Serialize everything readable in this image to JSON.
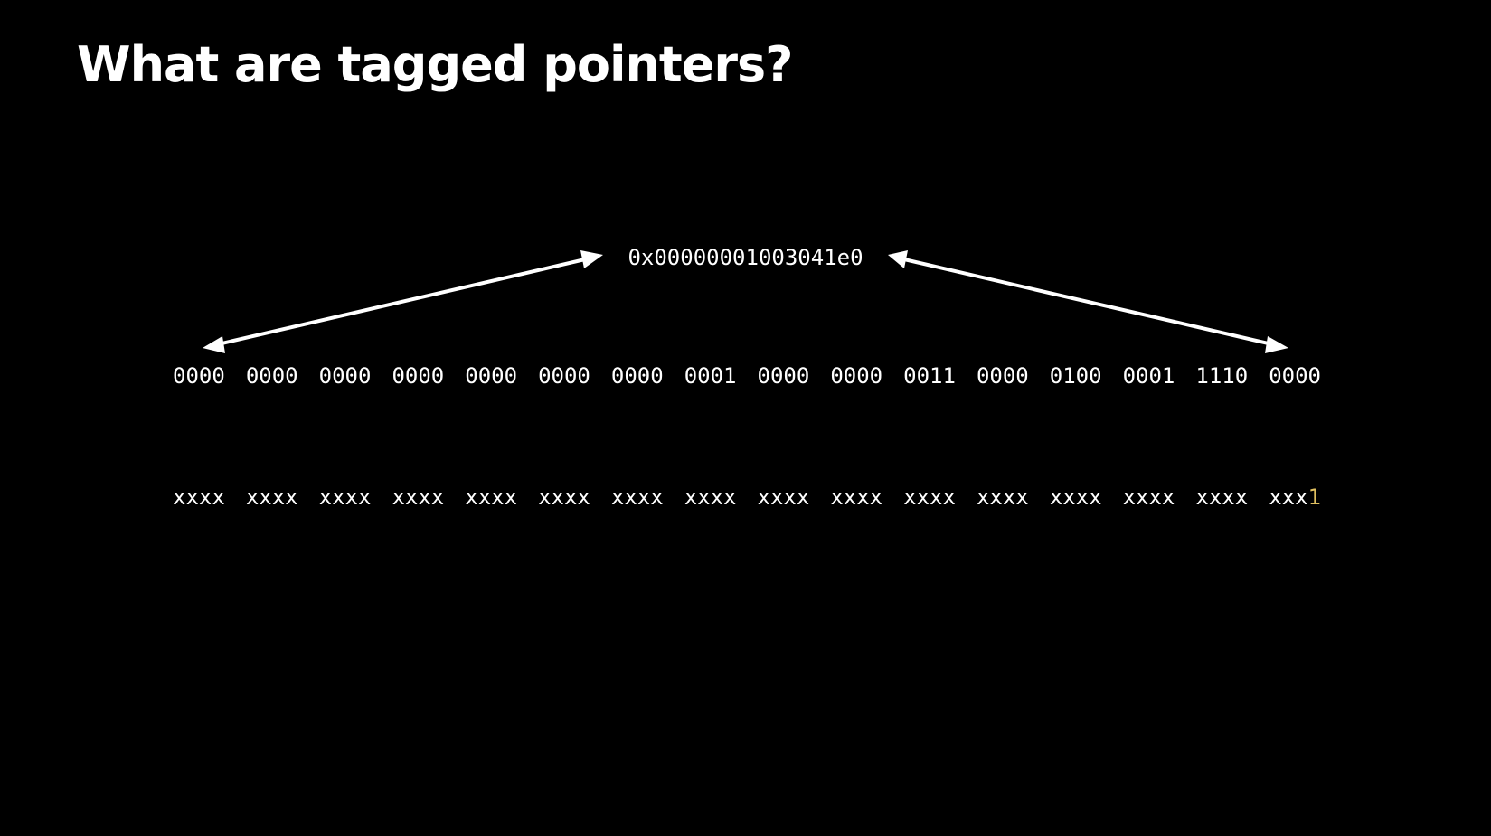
{
  "slide": {
    "title": "What are tagged pointers?",
    "pointer_hex": "0x00000001003041e0",
    "binary_nibbles": [
      "0000",
      "0000",
      "0000",
      "0000",
      "0000",
      "0000",
      "0000",
      "0001",
      "0000",
      "0000",
      "0011",
      "0000",
      "0100",
      "0001",
      "1110",
      "0000"
    ],
    "mask_nibbles": [
      "xxxx",
      "xxxx",
      "xxxx",
      "xxxx",
      "xxxx",
      "xxxx",
      "xxxx",
      "xxxx",
      "xxxx",
      "xxxx",
      "xxxx",
      "xxxx",
      "xxxx",
      "xxxx",
      "xxxx"
    ],
    "mask_last_prefix": "xxx",
    "mask_tag_bit": "1",
    "colors": {
      "background": "#000000",
      "text": "#ffffff",
      "tag_bit": "#e0c060"
    },
    "icons": {
      "left_arrow": "double-headed-arrow-left",
      "right_arrow": "double-headed-arrow-right"
    }
  }
}
